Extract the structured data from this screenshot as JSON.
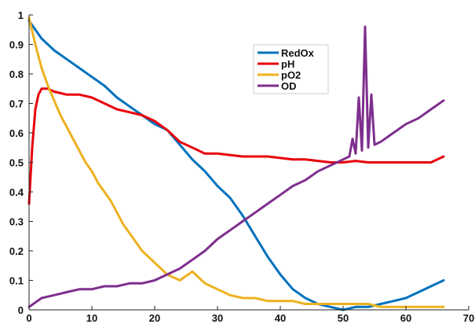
{
  "chart_data": {
    "type": "line",
    "title": "",
    "xlabel": "",
    "ylabel": "",
    "xlim": [
      0,
      70
    ],
    "ylim": [
      0,
      1
    ],
    "xticks": [
      "0",
      "10",
      "20",
      "30",
      "40",
      "50",
      "60",
      "70"
    ],
    "yticks": [
      "0",
      "0.1",
      "0.2",
      "0.3",
      "0.4",
      "0.5",
      "0.6",
      "0.7",
      "0.8",
      "0.9",
      "1"
    ],
    "grid": false,
    "legend_position": "top-center",
    "series": [
      {
        "name": "RedOx",
        "color": "#0072BD",
        "points": [
          [
            0,
            0.98
          ],
          [
            1,
            0.95
          ],
          [
            2,
            0.92
          ],
          [
            4,
            0.88
          ],
          [
            6,
            0.85
          ],
          [
            8,
            0.82
          ],
          [
            10,
            0.79
          ],
          [
            12,
            0.76
          ],
          [
            14,
            0.72
          ],
          [
            16,
            0.69
          ],
          [
            18,
            0.66
          ],
          [
            20,
            0.63
          ],
          [
            22,
            0.61
          ],
          [
            24,
            0.56
          ],
          [
            26,
            0.51
          ],
          [
            28,
            0.47
          ],
          [
            30,
            0.42
          ],
          [
            32,
            0.38
          ],
          [
            34,
            0.32
          ],
          [
            36,
            0.25
          ],
          [
            38,
            0.18
          ],
          [
            40,
            0.12
          ],
          [
            42,
            0.07
          ],
          [
            44,
            0.04
          ],
          [
            46,
            0.02
          ],
          [
            48,
            0.01
          ],
          [
            50,
            0.0
          ],
          [
            52,
            0.01
          ],
          [
            54,
            0.01
          ],
          [
            56,
            0.02
          ],
          [
            58,
            0.03
          ],
          [
            60,
            0.04
          ],
          [
            62,
            0.06
          ],
          [
            64,
            0.08
          ],
          [
            66,
            0.1
          ]
        ]
      },
      {
        "name": "pH",
        "color": "#E8000B",
        "points": [
          [
            0,
            0.36
          ],
          [
            0.5,
            0.55
          ],
          [
            1,
            0.68
          ],
          [
            1.5,
            0.73
          ],
          [
            2,
            0.75
          ],
          [
            3,
            0.75
          ],
          [
            4,
            0.74
          ],
          [
            6,
            0.73
          ],
          [
            8,
            0.73
          ],
          [
            10,
            0.72
          ],
          [
            12,
            0.7
          ],
          [
            14,
            0.68
          ],
          [
            16,
            0.67
          ],
          [
            18,
            0.66
          ],
          [
            20,
            0.64
          ],
          [
            22,
            0.61
          ],
          [
            24,
            0.57
          ],
          [
            26,
            0.55
          ],
          [
            28,
            0.53
          ],
          [
            30,
            0.53
          ],
          [
            32,
            0.525
          ],
          [
            34,
            0.52
          ],
          [
            36,
            0.52
          ],
          [
            38,
            0.52
          ],
          [
            40,
            0.515
          ],
          [
            42,
            0.51
          ],
          [
            44,
            0.51
          ],
          [
            46,
            0.505
          ],
          [
            48,
            0.5
          ],
          [
            50,
            0.5
          ],
          [
            52,
            0.505
          ],
          [
            54,
            0.5
          ],
          [
            56,
            0.5
          ],
          [
            58,
            0.5
          ],
          [
            60,
            0.5
          ],
          [
            62,
            0.5
          ],
          [
            64,
            0.5
          ],
          [
            66,
            0.52
          ]
        ]
      },
      {
        "name": "pO2",
        "color": "#EDB120",
        "points": [
          [
            0,
            0.99
          ],
          [
            1,
            0.9
          ],
          [
            2,
            0.82
          ],
          [
            3,
            0.76
          ],
          [
            4,
            0.71
          ],
          [
            5,
            0.66
          ],
          [
            6,
            0.62
          ],
          [
            7,
            0.58
          ],
          [
            8,
            0.54
          ],
          [
            9,
            0.5
          ],
          [
            10,
            0.47
          ],
          [
            11,
            0.43
          ],
          [
            12,
            0.4
          ],
          [
            13,
            0.37
          ],
          [
            14,
            0.33
          ],
          [
            15,
            0.29
          ],
          [
            16,
            0.26
          ],
          [
            17,
            0.23
          ],
          [
            18,
            0.2
          ],
          [
            19,
            0.18
          ],
          [
            20,
            0.16
          ],
          [
            21,
            0.14
          ],
          [
            22,
            0.12
          ],
          [
            23,
            0.11
          ],
          [
            24,
            0.1
          ],
          [
            26,
            0.13
          ],
          [
            28,
            0.09
          ],
          [
            30,
            0.07
          ],
          [
            32,
            0.05
          ],
          [
            34,
            0.04
          ],
          [
            36,
            0.04
          ],
          [
            38,
            0.03
          ],
          [
            40,
            0.03
          ],
          [
            42,
            0.03
          ],
          [
            44,
            0.02
          ],
          [
            46,
            0.02
          ],
          [
            48,
            0.02
          ],
          [
            50,
            0.02
          ],
          [
            54,
            0.02
          ],
          [
            56,
            0.01
          ],
          [
            58,
            0.01
          ],
          [
            60,
            0.01
          ],
          [
            62,
            0.01
          ],
          [
            66,
            0.01
          ]
        ]
      },
      {
        "name": "OD",
        "color": "#7E2F8E",
        "points": [
          [
            0,
            0.01
          ],
          [
            2,
            0.04
          ],
          [
            4,
            0.05
          ],
          [
            6,
            0.06
          ],
          [
            8,
            0.07
          ],
          [
            10,
            0.07
          ],
          [
            12,
            0.08
          ],
          [
            14,
            0.08
          ],
          [
            16,
            0.09
          ],
          [
            18,
            0.09
          ],
          [
            20,
            0.1
          ],
          [
            22,
            0.12
          ],
          [
            24,
            0.14
          ],
          [
            26,
            0.17
          ],
          [
            28,
            0.2
          ],
          [
            30,
            0.24
          ],
          [
            32,
            0.27
          ],
          [
            34,
            0.3
          ],
          [
            36,
            0.33
          ],
          [
            38,
            0.36
          ],
          [
            40,
            0.39
          ],
          [
            42,
            0.42
          ],
          [
            44,
            0.44
          ],
          [
            46,
            0.47
          ],
          [
            48,
            0.49
          ],
          [
            50,
            0.51
          ],
          [
            51,
            0.52
          ],
          [
            51.5,
            0.58
          ],
          [
            52,
            0.53
          ],
          [
            52.5,
            0.72
          ],
          [
            53,
            0.54
          ],
          [
            53.5,
            0.96
          ],
          [
            54,
            0.55
          ],
          [
            54.5,
            0.73
          ],
          [
            55,
            0.56
          ],
          [
            56,
            0.57
          ],
          [
            58,
            0.6
          ],
          [
            60,
            0.63
          ],
          [
            62,
            0.65
          ],
          [
            64,
            0.68
          ],
          [
            66,
            0.71
          ]
        ]
      }
    ]
  }
}
